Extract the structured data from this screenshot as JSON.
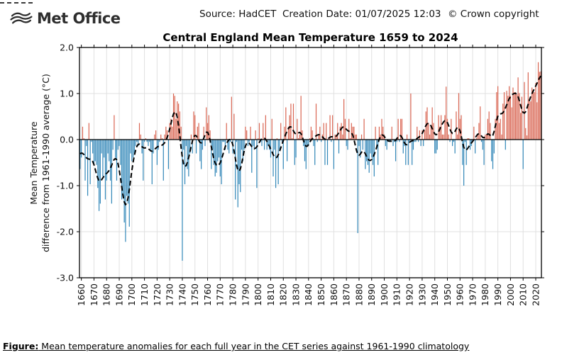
{
  "header": {
    "logo_text": "Met Office",
    "source_line": "Source: HadCET  Creation Date: 01/07/2025 12:03",
    "copyright": "© Crown copyright"
  },
  "caption": {
    "prefix": "Figure:",
    "text": " Mean temperature anomalies for each full year in the CET series against 1961-1990 climatology"
  },
  "colors": {
    "positive_bar": "#d96552",
    "negative_bar": "#3287b8",
    "trend_line": "#000000",
    "grid": "#e0e0e0",
    "frame": "#000000",
    "zero_line": "#000000"
  },
  "chart_data": {
    "type": "bar",
    "title": "Central England Mean Temperature 1659 to 2024",
    "xlabel": "",
    "ylabel_line1": "Mean Temperature",
    "ylabel_line2": "difference from 1961-1990 average (°C)",
    "ylim": [
      -3.0,
      2.0
    ],
    "grid": true,
    "year_start": 1659,
    "year_end": 2024,
    "x_ticks": [
      1660,
      1670,
      1680,
      1690,
      1700,
      1710,
      1720,
      1730,
      1740,
      1750,
      1760,
      1770,
      1780,
      1790,
      1800,
      1810,
      1820,
      1830,
      1840,
      1850,
      1860,
      1870,
      1880,
      1890,
      1900,
      1910,
      1920,
      1930,
      1940,
      1950,
      1960,
      1970,
      1980,
      1990,
      2000,
      2010,
      2020
    ],
    "y_ticks": [
      "2.0",
      "1.0",
      "0.0",
      "-1.0",
      "-2.0",
      "-3.0"
    ],
    "series": [
      {
        "name": "annual_mean_temperature_anomaly_degC",
        "type": "bar",
        "values": [
          -0.64,
          -0.39,
          0.28,
          0.03,
          -0.89,
          -0.14,
          -1.22,
          0.36,
          -0.97,
          -0.05,
          -0.3,
          -0.55,
          -0.47,
          -0.55,
          -1.05,
          -1.55,
          -1.39,
          -0.3,
          -0.8,
          -0.39,
          -1.3,
          -0.89,
          -0.3,
          -0.47,
          -0.89,
          -1.39,
          -0.22,
          0.53,
          -0.39,
          -0.89,
          -0.22,
          -0.14,
          -0.55,
          -1.3,
          -1.22,
          -1.8,
          -2.22,
          -1.22,
          -1.39,
          -1.89,
          -0.3,
          -0.47,
          -0.39,
          -0.3,
          -0.14,
          -0.05,
          -0.14,
          0.36,
          0.11,
          -0.3,
          -0.89,
          -0.05,
          0.03,
          -0.05,
          -0.14,
          -0.05,
          -0.22,
          -0.97,
          -0.3,
          0.11,
          0.2,
          -0.55,
          -0.22,
          -0.05,
          0.11,
          0.03,
          -0.89,
          0.11,
          0.28,
          0.2,
          -0.64,
          0.36,
          0.45,
          0.28,
          1.0,
          0.95,
          0.45,
          0.83,
          0.78,
          0.61,
          0.28,
          -2.63,
          -0.22,
          -0.97,
          -0.14,
          -0.64,
          -0.8,
          -0.3,
          0.11,
          -0.3,
          0.61,
          0.53,
          -0.3,
          0.28,
          0.36,
          -0.47,
          -0.64,
          -0.22,
          0.28,
          -0.14,
          0.7,
          0.36,
          0.53,
          0.2,
          -0.64,
          -0.22,
          -0.55,
          -0.8,
          -0.72,
          -0.47,
          -0.39,
          -0.8,
          -0.97,
          -0.05,
          -0.05,
          -0.22,
          0.36,
          -0.22,
          -0.3,
          -0.05,
          0.93,
          -0.3,
          0.56,
          -1.3,
          -0.05,
          -1.47,
          -0.97,
          -1.14,
          -0.22,
          -0.47,
          -0.22,
          0.28,
          0.2,
          -0.14,
          -0.05,
          0.28,
          -0.72,
          -0.14,
          -0.22,
          0.2,
          -1.05,
          0.03,
          0.36,
          -0.05,
          -0.14,
          0.36,
          -0.22,
          0.53,
          -0.22,
          -0.14,
          -0.22,
          -0.39,
          0.45,
          -0.8,
          -0.22,
          -1.05,
          0.03,
          -0.97,
          -0.22,
          0.36,
          -0.05,
          -0.64,
          0.28,
          0.7,
          -0.47,
          0.28,
          0.53,
          0.78,
          0.03,
          0.78,
          -0.55,
          -0.39,
          0.45,
          0.03,
          0.11,
          0.95,
          0.2,
          -0.14,
          -0.47,
          -0.64,
          -0.14,
          -0.14,
          0.03,
          0.28,
          0.2,
          -0.14,
          -0.55,
          0.78,
          -0.05,
          0.11,
          0.28,
          -0.05,
          0.11,
          0.36,
          -0.55,
          0.36,
          -0.55,
          0.03,
          0.53,
          -0.05,
          0.53,
          -0.64,
          0.11,
          0.11,
          0.36,
          -0.3,
          0.28,
          0.36,
          0.11,
          0.88,
          0.45,
          -0.14,
          -0.22,
          0.45,
          0.03,
          0.36,
          0.28,
          0.28,
          0.11,
          0.11,
          -2.03,
          -0.14,
          -0.39,
          0.11,
          -0.22,
          0.45,
          -0.64,
          -0.47,
          -0.55,
          -0.72,
          -0.3,
          -0.39,
          -0.55,
          -0.8,
          0.28,
          -0.14,
          -0.55,
          0.28,
          0.11,
          0.45,
          0.28,
          0.11,
          -0.14,
          -0.22,
          -0.05,
          -0.05,
          -0.05,
          0.28,
          -0.14,
          -0.05,
          -0.47,
          -0.05,
          0.45,
          -0.05,
          0.45,
          0.45,
          -0.3,
          -0.14,
          -0.55,
          0.11,
          -0.55,
          -0.05,
          1.0,
          -0.55,
          -0.22,
          -0.05,
          -0.05,
          0.28,
          -0.05,
          0.2,
          -0.14,
          0.2,
          -0.14,
          0.2,
          0.61,
          0.7,
          0.36,
          0.11,
          0.28,
          0.7,
          0.36,
          -0.3,
          -0.3,
          -0.22,
          0.53,
          0.28,
          0.53,
          0.11,
          0.11,
          0.53,
          1.15,
          0.45,
          0.11,
          -0.05,
          0.45,
          -0.14,
          -0.05,
          -0.3,
          0.61,
          0.11,
          1.01,
          0.45,
          0.53,
          -0.55,
          -1.0,
          -0.05,
          -0.55,
          0.03,
          0.03,
          -0.22,
          -0.14,
          -0.05,
          0.28,
          -0.3,
          0.03,
          0.11,
          0.36,
          0.72,
          -0.05,
          -0.22,
          -0.55,
          0.11,
          0.11,
          0.45,
          0.61,
          0.36,
          -0.47,
          -0.64,
          -0.3,
          0.45,
          1.03,
          1.16,
          0.36,
          0.45,
          0.11,
          0.78,
          1.03,
          -0.22,
          1.06,
          0.95,
          1.16,
          0.95,
          0.7,
          1.13,
          1.03,
          1.03,
          0.98,
          1.35,
          1.01,
          0.58,
          0.93,
          -0.64,
          1.25,
          0.25,
          0.09,
          1.46,
          0.83,
          0.83,
          1.13,
          1.08,
          1.03,
          1.23,
          0.81,
          1.68,
          1.47,
          1.48
        ]
      },
      {
        "name": "smoothed_trend",
        "type": "line",
        "style": "dashed",
        "derived": "multi-year smoothing of annual anomaly series"
      }
    ],
    "legend": "none"
  }
}
